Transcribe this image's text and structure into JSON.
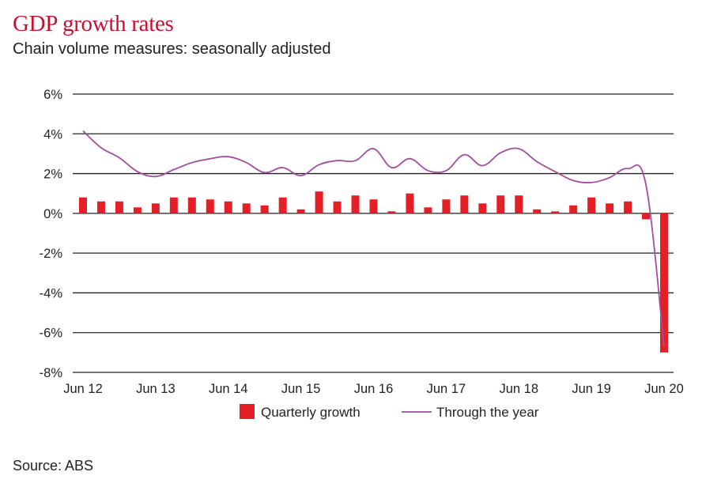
{
  "chart_data": {
    "type": "bar+line",
    "title": "GDP growth rates",
    "subtitle": "Chain volume measures: seasonally adjusted",
    "source": "Source: ABS",
    "ylim": [
      -8,
      6
    ],
    "yticks": [
      6,
      4,
      2,
      0,
      -2,
      -4,
      -6,
      -8
    ],
    "ytick_labels": [
      "6%",
      "4%",
      "2%",
      "0%",
      "-2%",
      "-4%",
      "-6%",
      "-8%"
    ],
    "xlim": [
      "Jun 12",
      "Jun 20"
    ],
    "xtick_labels": [
      "Jun 12",
      "Jun 13",
      "Jun 14",
      "Jun 15",
      "Jun 16",
      "Jun 17",
      "Jun 18",
      "Jun 19",
      "Jun 20"
    ],
    "grid": true,
    "legend_position": "bottom",
    "colors": {
      "title": "#c8102e",
      "bars": "#e41f26",
      "line": "#a24d9e",
      "grid": "#222222"
    },
    "series": [
      {
        "name": "Quarterly growth",
        "kind": "bar",
        "x": [
          "Jun 12",
          "Sep 12",
          "Dec 12",
          "Mar 13",
          "Jun 13",
          "Sep 13",
          "Dec 13",
          "Mar 14",
          "Jun 14",
          "Sep 14",
          "Dec 14",
          "Mar 15",
          "Jun 15",
          "Sep 15",
          "Dec 15",
          "Mar 16",
          "Jun 16",
          "Sep 16",
          "Dec 16",
          "Mar 17",
          "Jun 17",
          "Sep 17",
          "Dec 17",
          "Mar 18",
          "Jun 18",
          "Sep 18",
          "Dec 18",
          "Mar 19",
          "Jun 19",
          "Sep 19",
          "Dec 19",
          "Mar 20",
          "Jun 20"
        ],
        "values": [
          0.8,
          0.6,
          0.6,
          0.3,
          0.5,
          0.8,
          0.8,
          0.7,
          0.6,
          0.5,
          0.4,
          0.8,
          0.2,
          1.1,
          0.6,
          0.9,
          0.7,
          0.1,
          1.0,
          0.3,
          0.7,
          0.9,
          0.5,
          0.9,
          0.9,
          0.2,
          0.1,
          0.4,
          0.8,
          0.5,
          0.6,
          -0.3,
          -7.0
        ]
      },
      {
        "name": "Through the year",
        "kind": "line",
        "x": [
          "Jun 12",
          "Sep 12",
          "Dec 12",
          "Mar 13",
          "Jun 13",
          "Sep 13",
          "Dec 13",
          "Mar 14",
          "Jun 14",
          "Sep 14",
          "Dec 14",
          "Mar 15",
          "Jun 15",
          "Sep 15",
          "Dec 15",
          "Mar 16",
          "Jun 16",
          "Sep 16",
          "Dec 16",
          "Mar 17",
          "Jun 17",
          "Sep 17",
          "Dec 17",
          "Mar 18",
          "Jun 18",
          "Sep 18",
          "Dec 18",
          "Mar 19",
          "Jun 19",
          "Sep 19",
          "Dec 19",
          "Mar 20",
          "Jun 20"
        ],
        "values": [
          4.15,
          3.3,
          2.8,
          2.1,
          1.85,
          2.2,
          2.55,
          2.75,
          2.85,
          2.55,
          2.05,
          2.3,
          1.9,
          2.45,
          2.65,
          2.65,
          3.25,
          2.3,
          2.75,
          2.15,
          2.15,
          2.95,
          2.4,
          3.05,
          3.25,
          2.6,
          2.1,
          1.65,
          1.55,
          1.8,
          2.25,
          1.45,
          -6.7
        ]
      }
    ]
  }
}
